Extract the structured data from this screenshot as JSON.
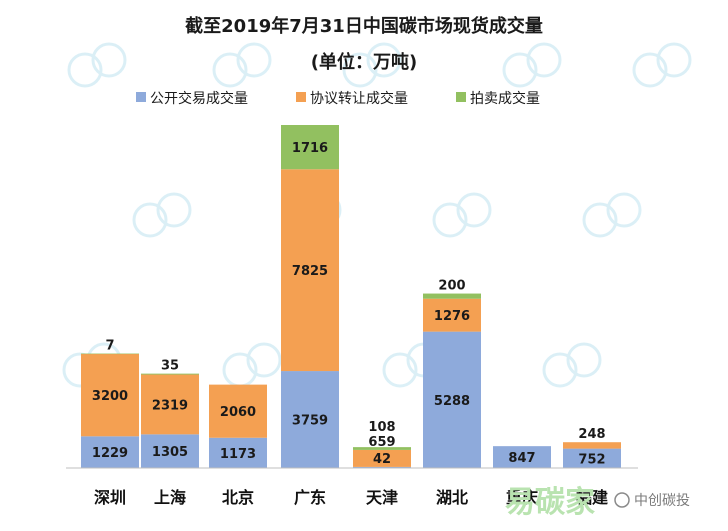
{
  "chart_data": {
    "type": "bar",
    "stacked": true,
    "title": "截至2019年7月31日中国碳市场现货成交量",
    "subtitle": "(单位：万吨)",
    "categories": [
      "深圳",
      "上海",
      "北京",
      "广东",
      "天津",
      "湖北",
      "重庆",
      "福建"
    ],
    "series": [
      {
        "name": "公开交易成交量",
        "color": "#8eaadb",
        "values": [
          1229,
          1305,
          1173,
          3759,
          42,
          5288,
          847,
          752
        ]
      },
      {
        "name": "协议转让成交量",
        "color": "#f4a052",
        "values": [
          3200,
          2319,
          2060,
          7825,
          659,
          1276,
          0,
          248
        ]
      },
      {
        "name": "拍卖成交量",
        "color": "#92c060",
        "values": [
          7,
          35,
          0,
          1716,
          108,
          200,
          0,
          0
        ]
      }
    ],
    "data_labels": [
      [
        "1229",
        "3200",
        "7"
      ],
      [
        "1305",
        "2319",
        "35"
      ],
      [
        "1173",
        "2060",
        ""
      ],
      [
        "3759",
        "7825",
        "1716"
      ],
      [
        "42",
        "659",
        "108"
      ],
      [
        "5288",
        "1276",
        "200"
      ],
      [
        "847",
        "",
        ""
      ],
      [
        "752",
        "248",
        ""
      ]
    ],
    "legend_position": "top",
    "grid": false
  },
  "watermark": {
    "text": "中创碳投",
    "brand_mark": "易碳家"
  }
}
